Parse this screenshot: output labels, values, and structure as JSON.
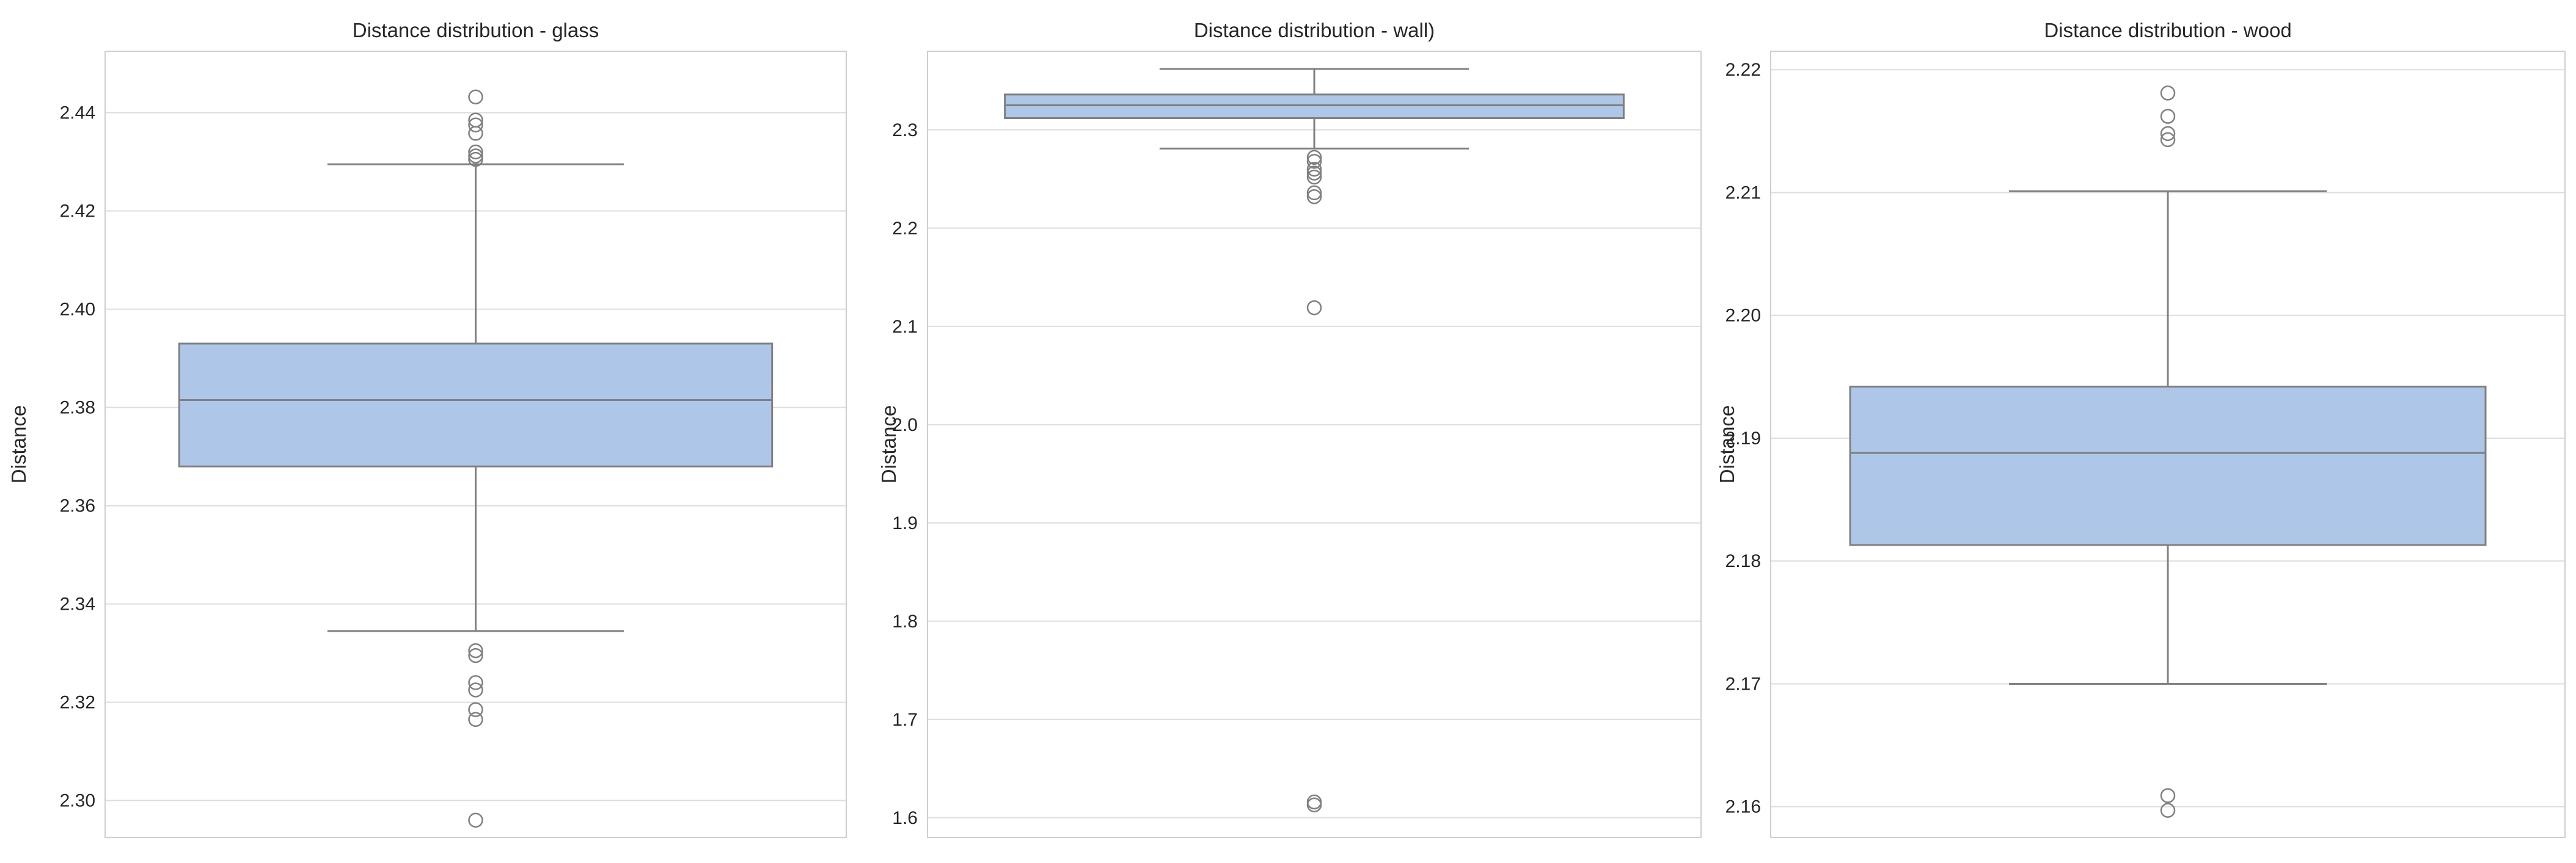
{
  "chart_data": [
    {
      "type": "box",
      "title": "Distance distribution - glass",
      "ylabel": "Distance",
      "xlabel": "",
      "ylim": [
        2.2925,
        2.4525
      ],
      "yticks": [
        2.3,
        2.32,
        2.34,
        2.36,
        2.38,
        2.4,
        2.42,
        2.44
      ],
      "tick_decimals": 2,
      "grid": true,
      "box": {
        "whisker_low": 2.3345,
        "q1": 2.368,
        "median": 2.3815,
        "q3": 2.393,
        "whisker_high": 2.4295
      },
      "outliers": [
        2.4432,
        2.4385,
        2.4375,
        2.4358,
        2.432,
        2.4312,
        2.4305,
        2.3305,
        2.3295,
        2.324,
        2.3225,
        2.3185,
        2.3165,
        2.296
      ]
    },
    {
      "type": "box",
      "title": "Distance distribution - wall)",
      "ylabel": "Distance",
      "xlabel": "",
      "ylim": [
        1.58,
        2.38
      ],
      "yticks": [
        1.6,
        1.7,
        1.8,
        1.9,
        2.0,
        2.1,
        2.2,
        2.3
      ],
      "tick_decimals": 1,
      "grid": true,
      "box": {
        "whisker_low": 2.281,
        "q1": 2.312,
        "median": 2.325,
        "q3": 2.336,
        "whisker_high": 2.362
      },
      "outliers": [
        2.272,
        2.268,
        2.26,
        2.256,
        2.252,
        2.236,
        2.232,
        2.119,
        1.616,
        1.613
      ]
    },
    {
      "type": "box",
      "title": "Distance distribution - wood",
      "ylabel": "Distance",
      "xlabel": "",
      "ylim": [
        2.1575,
        2.2215
      ],
      "yticks": [
        2.16,
        2.17,
        2.18,
        2.19,
        2.2,
        2.21,
        2.22
      ],
      "tick_decimals": 2,
      "grid": true,
      "box": {
        "whisker_low": 2.17,
        "q1": 2.1813,
        "median": 2.1888,
        "q3": 2.1942,
        "whisker_high": 2.2101
      },
      "outliers": [
        2.2181,
        2.2162,
        2.2148,
        2.2143,
        2.1609,
        2.1597
      ]
    }
  ],
  "colors": {
    "box_fill": "#aec7e8",
    "box_edge": "#808080",
    "grid": "#dddddd",
    "frame": "#cfcfcf",
    "text": "#262626"
  }
}
